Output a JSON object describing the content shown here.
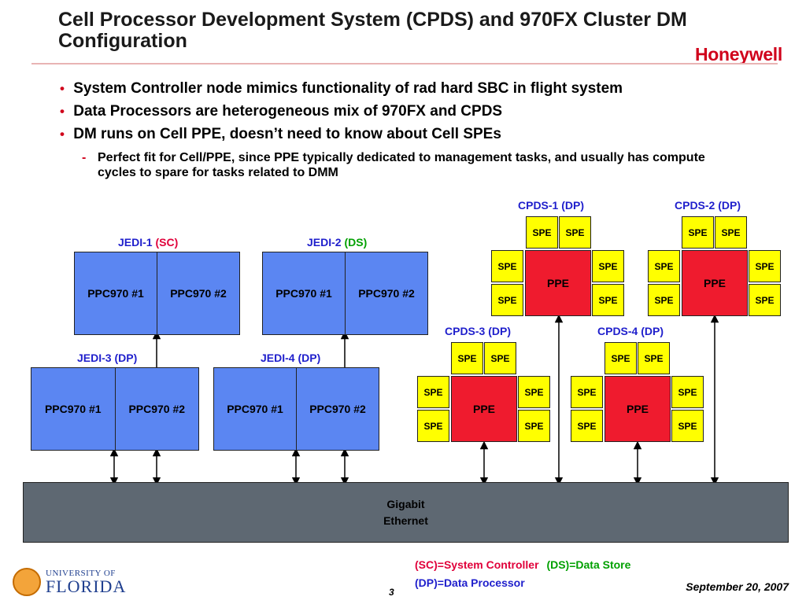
{
  "header": {
    "title": "Cell Processor Development System (CPDS) and 970FX Cluster DM Configuration",
    "logo_text": "Honeywell"
  },
  "bullets": [
    "System Controller node mimics functionality of rad hard SBC in flight system",
    "Data Processors are heterogeneous mix of 970FX and CPDS",
    "DM runs on Cell PPE, doesn’t need to know about Cell SPEs"
  ],
  "sub_bullet": "Perfect fit for Cell/PPE, since PPE typically dedicated to management tasks, and usually has compute cycles to spare for tasks related to DMM",
  "jedi": [
    {
      "name": "JEDI-1",
      "role": "(SC)",
      "cells": [
        "PPC970 #1",
        "PPC970 #2"
      ]
    },
    {
      "name": "JEDI-2",
      "role": "(DS)",
      "cells": [
        "PPC970 #1",
        "PPC970 #2"
      ]
    },
    {
      "name": "JEDI-3",
      "role": "(DP)",
      "cells": [
        "PPC970 #1",
        "PPC970 #2"
      ]
    },
    {
      "name": "JEDI-4",
      "role": "(DP)",
      "cells": [
        "PPC970 #1",
        "PPC970 #2"
      ]
    }
  ],
  "cpds": [
    {
      "name": "CPDS-1",
      "role": "(DP)"
    },
    {
      "name": "CPDS-2",
      "role": "(DP)"
    },
    {
      "name": "CPDS-3",
      "role": "(DP)"
    },
    {
      "name": "CPDS-4",
      "role": "(DP)"
    }
  ],
  "spe_label": "SPE",
  "ppe_label": "PPE",
  "ethernet": {
    "line1": "Gigabit",
    "line2": "Ethernet"
  },
  "legend": {
    "sc": "(SC)=System Controller",
    "ds": "(DS)=Data Store",
    "dp": "(DP)=Data Processor"
  },
  "footer": {
    "page": "3",
    "date": "September 20, 2007",
    "uf_line1": "UNIVERSITY OF",
    "uf_line2": "FLORIDA"
  },
  "colors": {
    "jedi_fill": "#5b86f2",
    "spe_fill": "#ffff00",
    "ppe_fill": "#ef1b2e",
    "ethernet_fill": "#5e6872",
    "accent_red": "#d0021b"
  }
}
